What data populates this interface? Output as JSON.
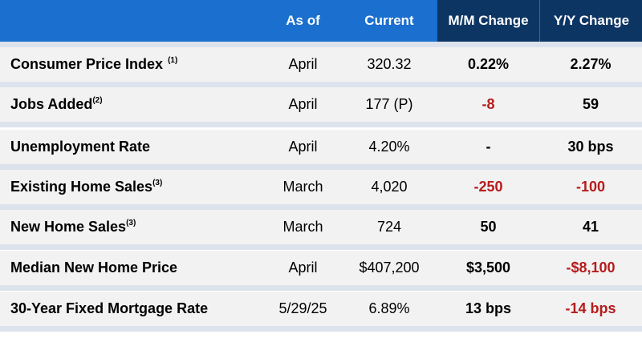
{
  "header": {
    "as_of": "As of",
    "current": "Current",
    "mm_change": "M/M Change",
    "yy_change": "Y/Y Change"
  },
  "colors": {
    "header_blue": "#1b6fce",
    "header_dark": "#0d3563",
    "row_bg": "#f2f2f2",
    "separator": "#dde3ec",
    "negative": "#b51c1c"
  },
  "rows": [
    {
      "label": "Consumer Price Index",
      "note": "(1)",
      "as_of": "April",
      "current": "320.32",
      "mm": "0.22%",
      "mm_negative": false,
      "yy": "2.27%",
      "yy_negative": false
    },
    {
      "label": "Jobs Added",
      "note": "(2)",
      "as_of": "April",
      "current": "177 (P)",
      "mm": "-8",
      "mm_negative": true,
      "yy": "59",
      "yy_negative": false
    },
    {
      "label": "Unemployment Rate",
      "note": "",
      "as_of": "April",
      "current": "4.20%",
      "mm": "-",
      "mm_negative": false,
      "yy": "30 bps",
      "yy_negative": false
    },
    {
      "label": "Existing Home Sales",
      "note": "(3)",
      "as_of": "March",
      "current": "4,020",
      "mm": "-250",
      "mm_negative": true,
      "yy": "-100",
      "yy_negative": true
    },
    {
      "label": "New Home Sales",
      "note": "(3)",
      "as_of": "March",
      "current": "724",
      "mm": "50",
      "mm_negative": false,
      "yy": "41",
      "yy_negative": false
    },
    {
      "label": "Median New Home Price",
      "note": "",
      "as_of": "April",
      "current": "$407,200",
      "mm": "$3,500",
      "mm_negative": false,
      "yy": "-$8,100",
      "yy_negative": true
    },
    {
      "label": "30-Year Fixed Mortgage Rate",
      "note": "",
      "as_of": "5/29/25",
      "current": "6.89%",
      "mm": "13 bps",
      "mm_negative": false,
      "yy": "-14 bps",
      "yy_negative": true
    }
  ]
}
